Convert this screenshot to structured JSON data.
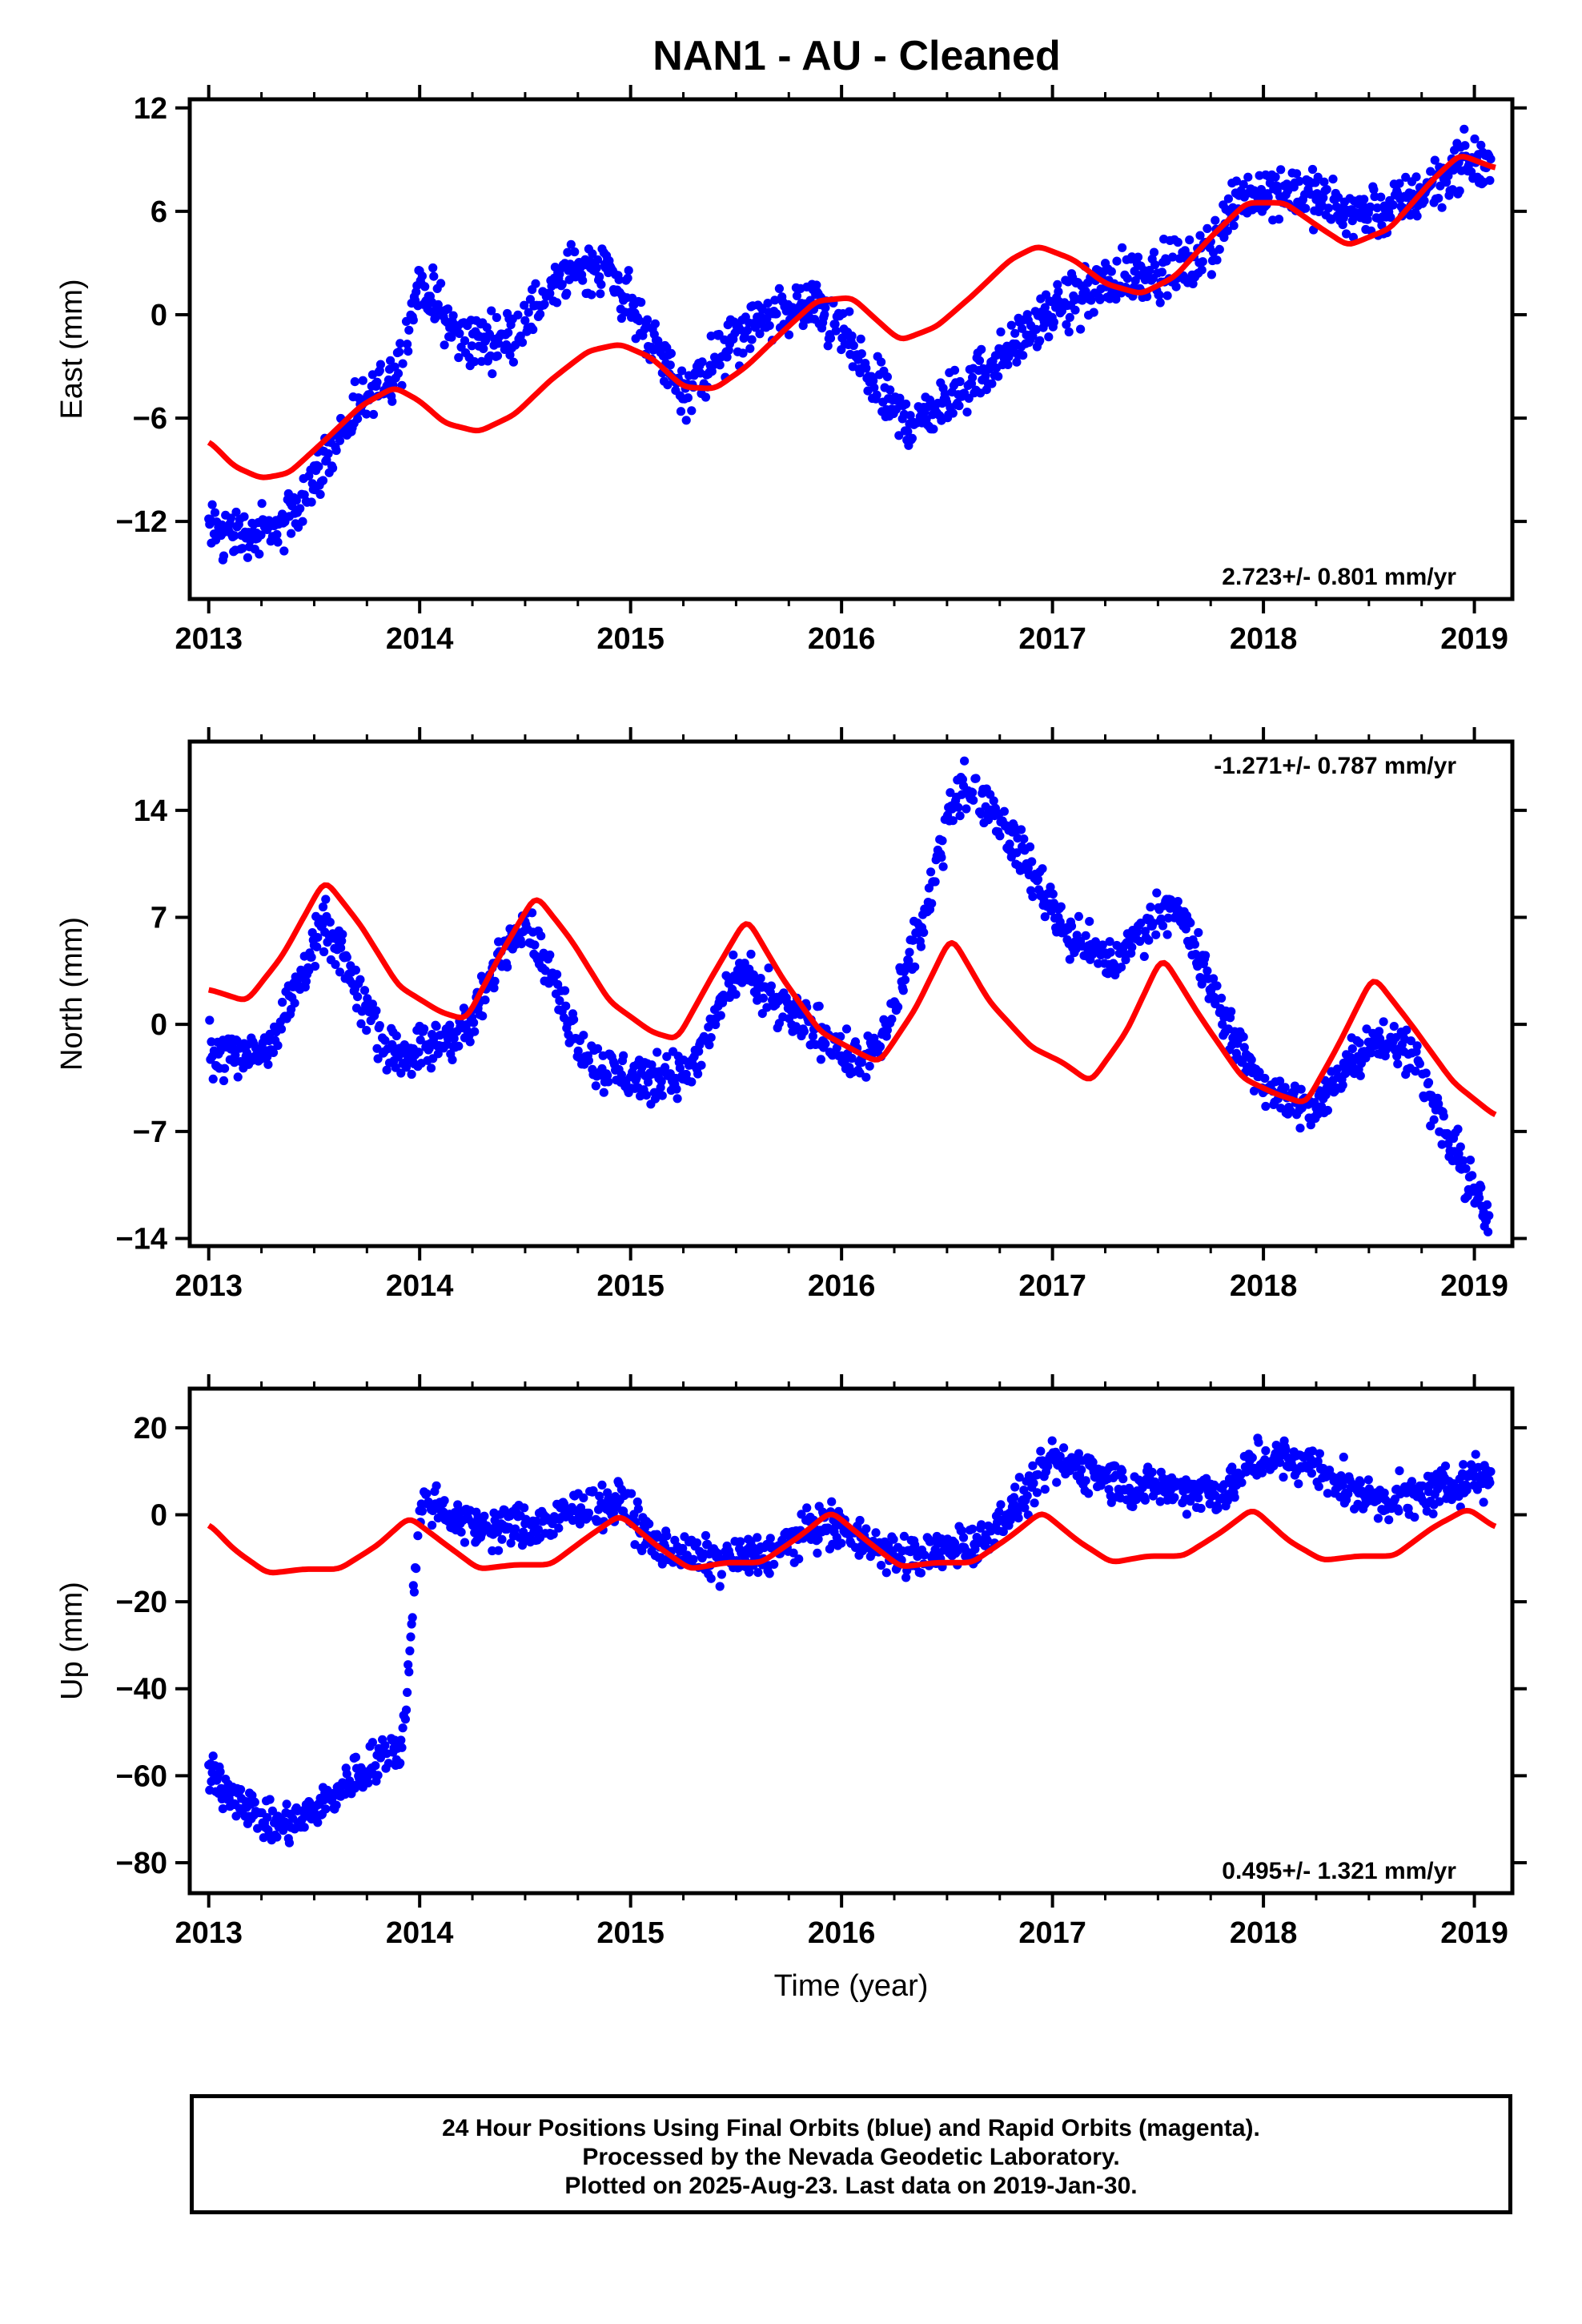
{
  "title": "NAN1  - AU - Cleaned",
  "footer": {
    "line1": "24 Hour Positions Using Final Orbits (blue) and Rapid Orbits (magenta).",
    "line2": "Processed by the Nevada Geodetic Laboratory.",
    "line3": "Plotted on 2025-Aug-23. Last data on 2019-Jan-30."
  },
  "colors": {
    "points": "#0000ff",
    "model": "#ff0000",
    "axis": "#000000"
  },
  "chart_data": [
    {
      "type": "scatter",
      "ylabel": "East (mm)",
      "xlabel": "",
      "xlim": [
        2012.91,
        2019.18
      ],
      "ylim": [
        -16.5,
        12.5
      ],
      "xticks": [
        2013,
        2014,
        2015,
        2016,
        2017,
        2018,
        2019
      ],
      "yticks": [
        -12,
        -6,
        0,
        6,
        12
      ],
      "yticklabels": [
        "−12",
        "−6",
        "0",
        "6",
        "12"
      ],
      "rate": "2.723+/- 0.801 mm/yr",
      "rate_position": "bottom-right",
      "series": [
        {
          "kind": "points",
          "x": [
            2013.0,
            2013.2,
            2013.35,
            2013.45,
            2013.6,
            2013.75,
            2013.9,
            2014.0,
            2014.2,
            2014.4,
            2014.6,
            2014.75,
            2014.9,
            2015.1,
            2015.25,
            2015.45,
            2015.65,
            2015.85,
            2016.0,
            2016.15,
            2016.3,
            2016.45,
            2016.7,
            2016.9,
            2017.1,
            2017.3,
            2017.5,
            2017.7,
            2017.9,
            2018.1,
            2018.3,
            2018.45,
            2018.6,
            2018.8,
            2018.95,
            2019.08
          ],
          "y": [
            -12.5,
            -12.8,
            -12.5,
            -10.5,
            -7.5,
            -5,
            -3,
            2,
            -1.5,
            -1.5,
            1,
            3,
            2.5,
            -1.5,
            -4.5,
            -2,
            0,
            0.5,
            -1,
            -4,
            -6.2,
            -5.5,
            -3,
            -1,
            1,
            2,
            2.5,
            3,
            7,
            7.5,
            6.5,
            6,
            6,
            7.5,
            9,
            8.5
          ],
          "spread": 1.3
        },
        {
          "kind": "line",
          "x": [
            2013.0,
            2013.12,
            2013.25,
            2013.38,
            2013.55,
            2013.72,
            2013.88,
            2014.0,
            2014.12,
            2014.28,
            2014.45,
            2014.62,
            2014.8,
            2014.95,
            2015.1,
            2015.25,
            2015.4,
            2015.55,
            2015.72,
            2015.88,
            2016.05,
            2016.22,
            2016.28,
            2016.45,
            2016.62,
            2016.8,
            2016.93,
            2017.1,
            2017.25,
            2017.42,
            2017.58,
            2017.75,
            2017.92,
            2018.1,
            2018.25,
            2018.4,
            2018.6,
            2018.8,
            2018.93,
            2019.1
          ],
          "y": [
            -7.3,
            -8.8,
            -9.5,
            -9.2,
            -7.3,
            -5.3,
            -4.2,
            -5,
            -6.3,
            -6.8,
            -5.8,
            -3.8,
            -2.1,
            -1.7,
            -2.5,
            -4.2,
            -4.3,
            -3,
            -1,
            0.8,
            1.0,
            -0.9,
            -1.5,
            -0.7,
            1.1,
            3.2,
            4.0,
            3.2,
            1.8,
            1.2,
            2.2,
            4.5,
            6.5,
            6.5,
            5.2,
            4.0,
            5,
            7.8,
            9.3,
            8.5
          ]
        }
      ]
    },
    {
      "type": "scatter",
      "ylabel": "North (mm)",
      "xlabel": "",
      "xlim": [
        2012.91,
        2019.18
      ],
      "ylim": [
        -14.5,
        18.5
      ],
      "xticks": [
        2013,
        2014,
        2015,
        2016,
        2017,
        2018,
        2019
      ],
      "yticks": [
        -14,
        -7,
        0,
        7,
        14
      ],
      "yticklabels": [
        "−14",
        "−7",
        "0",
        "7",
        "14"
      ],
      "rate": "-1.271+/- 0.787 mm/yr",
      "rate_position": "top-right",
      "series": [
        {
          "kind": "points",
          "x": [
            2013.0,
            2013.15,
            2013.3,
            2013.45,
            2013.55,
            2013.68,
            2013.85,
            2014.05,
            2014.25,
            2014.4,
            2014.5,
            2014.62,
            2014.8,
            2015.0,
            2015.15,
            2015.3,
            2015.45,
            2015.55,
            2015.7,
            2015.9,
            2016.05,
            2016.18,
            2016.32,
            2016.42,
            2016.52,
            2016.6,
            2016.75,
            2016.9,
            2017.1,
            2017.3,
            2017.48,
            2017.58,
            2017.75,
            2017.9,
            2018.05,
            2018.25,
            2018.42,
            2018.55,
            2018.7,
            2018.82,
            2018.95,
            2019.07
          ],
          "y": [
            -1.5,
            -2,
            -1,
            3.5,
            6.5,
            3,
            -2,
            -1.5,
            0,
            5,
            7,
            3,
            -2.5,
            -3.5,
            -3.5,
            -3,
            2,
            3.5,
            1,
            -0.5,
            -2.5,
            -1.5,
            4,
            8,
            15,
            15.5,
            13.5,
            10,
            5.5,
            4,
            7,
            8,
            2.5,
            -2,
            -4.5,
            -5.8,
            -2,
            -1,
            -1.5,
            -6,
            -9.5,
            -13
          ],
          "spread": 1.3
        },
        {
          "kind": "line",
          "x": [
            2013.0,
            2013.18,
            2013.35,
            2013.55,
            2013.72,
            2013.9,
            2014.1,
            2014.22,
            2014.38,
            2014.55,
            2014.72,
            2014.9,
            2015.1,
            2015.22,
            2015.38,
            2015.55,
            2015.72,
            2015.9,
            2016.1,
            2016.18,
            2016.35,
            2016.52,
            2016.7,
            2016.9,
            2017.05,
            2017.18,
            2017.35,
            2017.52,
            2017.7,
            2017.9,
            2018.05,
            2018.2,
            2018.35,
            2018.52,
            2018.7,
            2018.9,
            2019.1
          ],
          "y": [
            2.3,
            1.5,
            4.5,
            9.5,
            6.5,
            2.5,
            0.8,
            0.3,
            4.5,
            8.5,
            5.5,
            1.5,
            -0.5,
            -1.0,
            3,
            7,
            3,
            -0.5,
            -2.0,
            -2.5,
            1,
            5.8,
            1.5,
            -1.5,
            -2.5,
            -3.8,
            -0.5,
            4.5,
            0.5,
            -3.5,
            -4.5,
            -5.2,
            -1.5,
            3.2,
            0,
            -3.8,
            -6
          ]
        }
      ]
    },
    {
      "type": "scatter",
      "ylabel": "Up (mm)",
      "xlabel": "Time (year)",
      "xlim": [
        2012.91,
        2019.18
      ],
      "ylim": [
        -87,
        29
      ],
      "xticks": [
        2013,
        2014,
        2015,
        2016,
        2017,
        2018,
        2019
      ],
      "yticks": [
        -80,
        -60,
        -40,
        -20,
        0,
        20
      ],
      "yticklabels": [
        "−80",
        "−60",
        "−40",
        "−20",
        "0",
        "20"
      ],
      "rate": "0.495+/- 1.321 mm/yr",
      "rate_position": "bottom-right",
      "series": [
        {
          "kind": "points",
          "x": [
            2013.0,
            2013.15,
            2013.3,
            2013.45,
            2013.6,
            2013.75,
            2013.92,
            2013.99,
            2014.02,
            2014.2,
            2014.4,
            2014.6,
            2014.8,
            2014.95,
            2015.1,
            2015.3,
            2015.5,
            2015.7,
            2015.9,
            2016.05,
            2016.25,
            2016.45,
            2016.65,
            2016.85,
            2017.0,
            2017.2,
            2017.4,
            2017.6,
            2017.8,
            2018.0,
            2018.2,
            2018.4,
            2018.6,
            2018.8,
            2019.0,
            2019.08
          ],
          "y": [
            -60,
            -65,
            -72,
            -70,
            -64,
            -58,
            -52,
            -6,
            4,
            -2,
            -3,
            -2,
            2,
            3,
            -6,
            -10,
            -10,
            -8,
            -2,
            -4,
            -10,
            -9,
            -6,
            3,
            12,
            10,
            6,
            6,
            5,
            13,
            12,
            6,
            3,
            5,
            9,
            9
          ],
          "spread": 4
        },
        {
          "kind": "line",
          "x": [
            2013.0,
            2013.12,
            2013.28,
            2013.45,
            2013.62,
            2013.8,
            2013.95,
            2014.1,
            2014.28,
            2014.45,
            2014.62,
            2014.8,
            2014.95,
            2015.12,
            2015.28,
            2015.45,
            2015.62,
            2015.8,
            2015.95,
            2016.12,
            2016.28,
            2016.45,
            2016.62,
            2016.8,
            2016.95,
            2017.12,
            2017.28,
            2017.45,
            2017.62,
            2017.8,
            2017.95,
            2018.12,
            2018.28,
            2018.45,
            2018.62,
            2018.8,
            2018.97,
            2019.1
          ],
          "y": [
            -2,
            -8,
            -13.5,
            -12.5,
            -12.5,
            -7,
            -0.5,
            -6,
            -12.5,
            -11.5,
            -11.5,
            -5,
            0,
            -7,
            -12.5,
            -11,
            -11,
            -5,
            0.8,
            -6,
            -12,
            -11,
            -11,
            -5,
            0.8,
            -6,
            -11,
            -9.5,
            -9.5,
            -4,
            1.5,
            -6,
            -10.5,
            -9.5,
            -9.5,
            -3,
            1.5,
            -3
          ]
        }
      ]
    }
  ]
}
